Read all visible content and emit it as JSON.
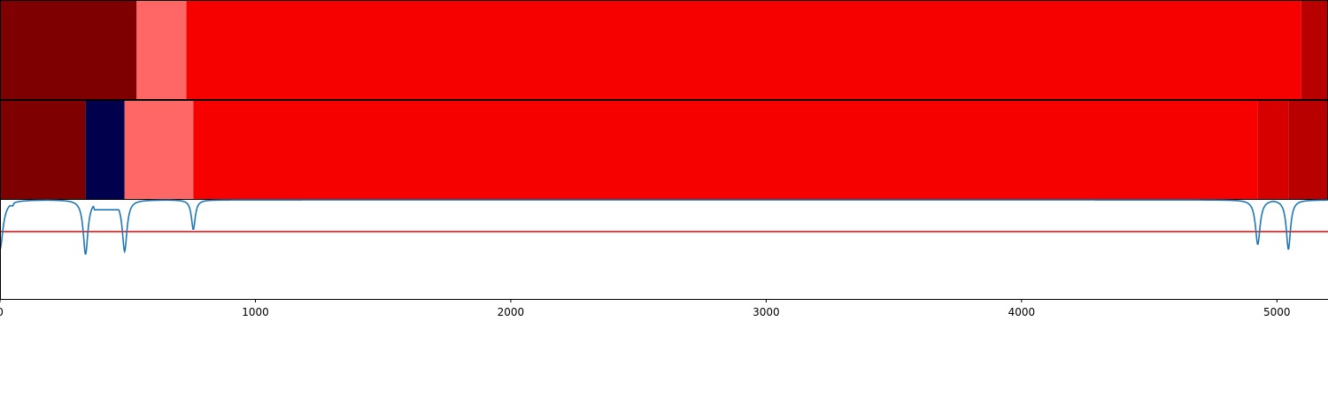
{
  "chart_data": {
    "type": "heatmap",
    "title": "",
    "xlabel": "",
    "ylabel": "",
    "xlim": [
      0,
      5200
    ],
    "grid": false,
    "legend": "none",
    "xticks": [
      {
        "value": 0,
        "label": "0"
      },
      {
        "value": 1000,
        "label": "1000"
      },
      {
        "value": 2000,
        "label": "2000"
      },
      {
        "value": 3000,
        "label": "3000"
      },
      {
        "value": 4000,
        "label": "4000"
      },
      {
        "value": 5000,
        "label": "5000"
      }
    ],
    "segment_tracks": [
      {
        "segments": [
          {
            "start": 0,
            "end": 535,
            "color": "#7f0000"
          },
          {
            "start": 535,
            "end": 730,
            "color": "#ff6666"
          },
          {
            "start": 730,
            "end": 5095,
            "color": "#f70000"
          },
          {
            "start": 5095,
            "end": 5200,
            "color": "#b80000"
          }
        ]
      },
      {
        "segments": [
          {
            "start": 0,
            "end": 335,
            "color": "#7f0000"
          },
          {
            "start": 335,
            "end": 488,
            "color": "#00004d"
          },
          {
            "start": 488,
            "end": 757,
            "color": "#ff6666"
          },
          {
            "start": 757,
            "end": 4925,
            "color": "#f70000"
          },
          {
            "start": 4925,
            "end": 5045,
            "color": "#d70000"
          },
          {
            "start": 5045,
            "end": 5200,
            "color": "#b80000"
          }
        ]
      }
    ],
    "line_track": {
      "ylim": [
        0,
        1
      ],
      "line_color": "#1f77b4",
      "threshold": 0.32,
      "threshold_color": "#ff0000",
      "dips": [
        {
          "x": 0,
          "depth": 0.5,
          "width": 14
        },
        {
          "x": 335,
          "depth": 0.55,
          "width": 11
        },
        {
          "x": 488,
          "depth": 0.52,
          "width": 11
        },
        {
          "x": 757,
          "depth": 0.3,
          "width": 9
        },
        {
          "x": 4925,
          "depth": 0.45,
          "width": 11
        },
        {
          "x": 5045,
          "depth": 0.5,
          "width": 10
        }
      ],
      "plateaus": [
        {
          "start": 0,
          "end": 50,
          "level": 0.06
        },
        {
          "start": 370,
          "end": 470,
          "level": 0.1
        }
      ]
    }
  }
}
